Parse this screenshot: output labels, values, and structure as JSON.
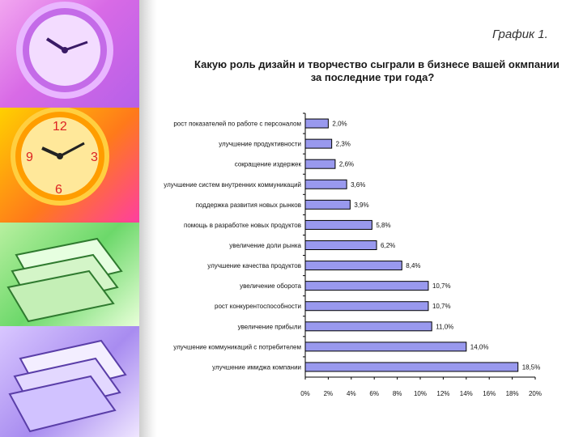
{
  "figure_label": "График 1.",
  "chart_data": {
    "type": "bar",
    "orientation": "horizontal",
    "title": "Какую роль дизайн и творчество сыграли в бизнесе вашей окмпании за последние три года?",
    "title_lines": [
      "Какую роль дизайн и творчество сыграли в бизнесе вашей окмпании",
      "за последние три года?"
    ],
    "categories": [
      "рост показателей по работе с персоналом",
      "улучшение продуктивности",
      "сокращение издержек",
      "улучшение систем внутренних коммуникаций",
      "поддержка развития новых рынков",
      "помощь в разработке новых продуктов",
      "увеличение доли рынка",
      "улучшение качества продуктов",
      "увеличение оборота",
      "рост конкурентоспособности",
      "увеличение прибыли",
      "улучшение коммуникаций с потребителем",
      "улучшение имиджа компании"
    ],
    "values": [
      2.0,
      2.3,
      2.6,
      3.6,
      3.9,
      5.8,
      6.2,
      8.4,
      10.7,
      10.7,
      11.0,
      14.0,
      18.5
    ],
    "value_labels": [
      "2,0%",
      "2,3%",
      "2,6%",
      "3,6%",
      "3,9%",
      "5,8%",
      "6,2%",
      "8,4%",
      "10,7%",
      "10,7%",
      "11,0%",
      "14,0%",
      "18,5%"
    ],
    "xlim": [
      0,
      20
    ],
    "x_ticks": [
      "0%",
      "2%",
      "4%",
      "6%",
      "8%",
      "10%",
      "12%",
      "14%",
      "16%",
      "18%",
      "20%"
    ],
    "xlabel": "",
    "ylabel": "",
    "grid": false,
    "legend": "none",
    "bar_color": "#9999ee",
    "bar_edge_color": "#000000"
  }
}
